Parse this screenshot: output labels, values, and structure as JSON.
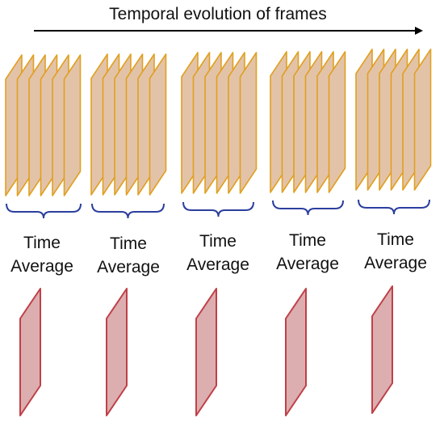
{
  "title": "Temporal evolution of frames",
  "colors": {
    "frame_fill": "#e3c3a8",
    "frame_stroke": "#e0a020",
    "brace": "#2b3f9e",
    "avg_fill": "#dcaeb0",
    "avg_stroke": "#c04048",
    "arrow": "#000000"
  },
  "groups": [
    {
      "label_line1": "Time",
      "label_line2": "Average"
    },
    {
      "label_line1": "Time",
      "label_line2": "Average"
    },
    {
      "label_line1": "Time",
      "label_line2": "Average"
    },
    {
      "label_line1": "Time",
      "label_line2": "Average"
    },
    {
      "label_line1": "Time",
      "label_line2": "Average"
    }
  ],
  "frames_per_group": 6
}
